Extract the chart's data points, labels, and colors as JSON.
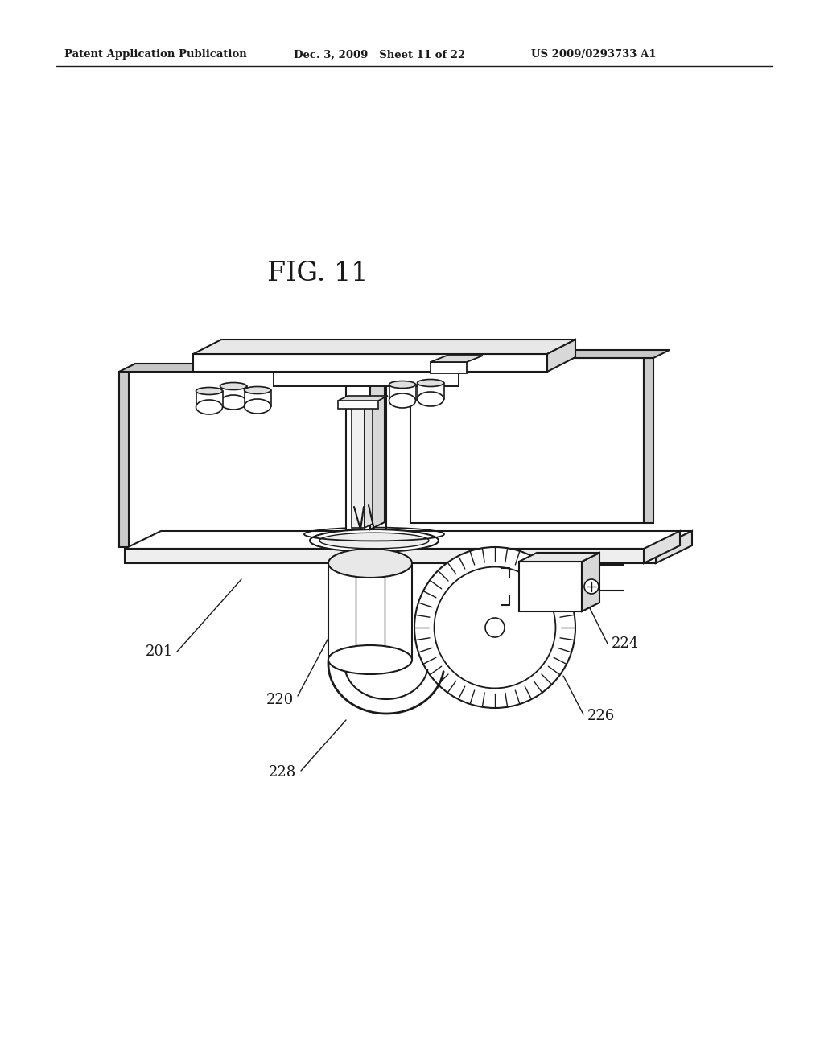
{
  "bg_color": "#ffffff",
  "line_color": "#1a1a1a",
  "header_left": "Patent Application Publication",
  "header_mid": "Dec. 3, 2009   Sheet 11 of 22",
  "header_right": "US 2009/0293733 A1",
  "fig_label": "FIG. 11",
  "label_fontsize": 13
}
